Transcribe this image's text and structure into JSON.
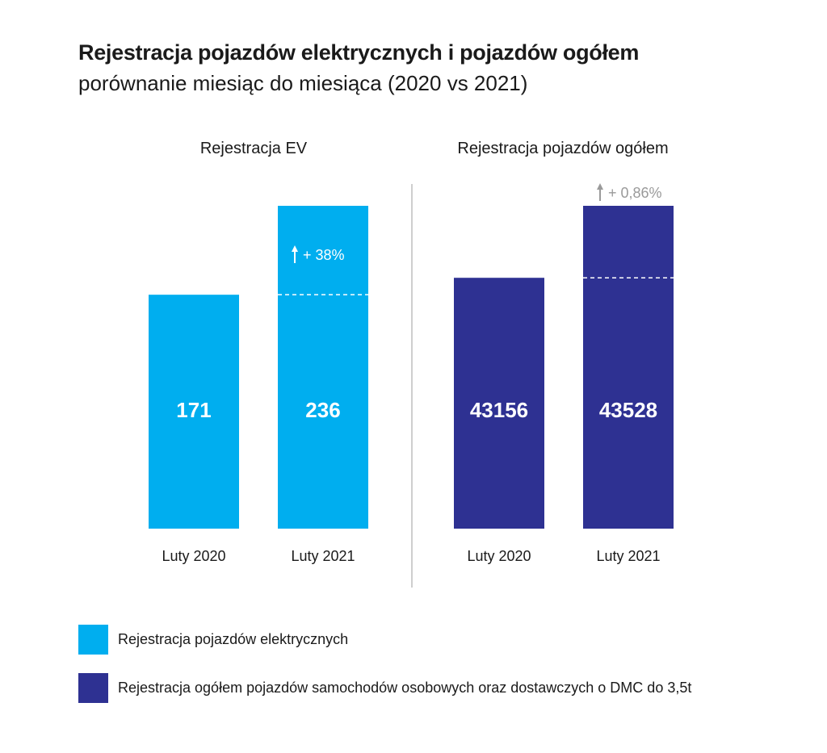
{
  "header": {
    "title": "Rejestracja pojazdów elektrycznych i pojazdów ogółem",
    "subtitle": "porównanie miesiąc do miesiąca (2020 vs 2021)"
  },
  "colors": {
    "ev": "#00aeef",
    "total": "#2e3192",
    "delta_text_ev": "#ffffff",
    "delta_text_total": "#9a9a9a"
  },
  "chart_data": [
    {
      "type": "bar",
      "panel": "left",
      "title": "Rejestracja EV",
      "categories": [
        "Luty 2020",
        "Luty 2021"
      ],
      "values": [
        171,
        236
      ],
      "value_labels": [
        "171",
        "236"
      ],
      "change_label": "+ 38%",
      "series_name": "Rejestracja pojazdów elektrycznych"
    },
    {
      "type": "bar",
      "panel": "right",
      "title": "Rejestracja pojazdów ogółem",
      "categories": [
        "Luty 2020",
        "Luty 2021"
      ],
      "values": [
        43156,
        43528
      ],
      "value_labels": [
        "43156",
        "43528"
      ],
      "change_label": "+ 0,86%",
      "series_name": "Rejestracja ogółem pojazdów samochodów osobowych oraz dostawczych o DMC do 3,5t"
    }
  ],
  "legend": {
    "items": [
      {
        "label": "Rejestracja pojazdów elektrycznych",
        "color": "#00aeef"
      },
      {
        "label": "Rejestracja ogółem pojazdów samochodów osobowych oraz dostawczych o DMC do 3,5t",
        "color": "#2e3192"
      }
    ]
  }
}
